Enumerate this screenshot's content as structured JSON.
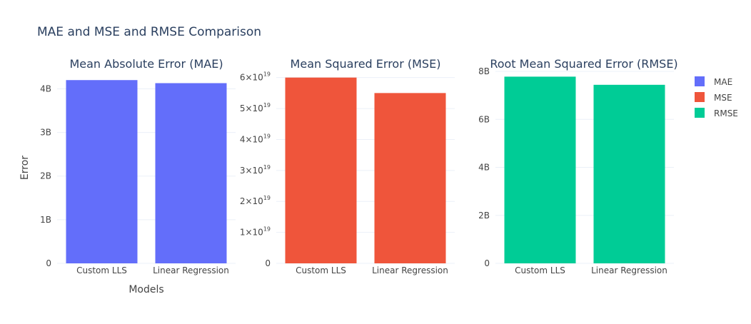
{
  "figure": {
    "title": "MAE and MSE and RMSE Comparison",
    "xlabel": "Models",
    "ylabel": "Error"
  },
  "colors": {
    "MAE": "#636efa",
    "MSE": "#ef553b",
    "RMSE": "#00cc96",
    "text": "#444444",
    "title": "#2a3f5f",
    "grid": "#ebf0f8"
  },
  "legend": {
    "placement": "top-right",
    "items": [
      "MAE",
      "MSE",
      "RMSE"
    ]
  },
  "chart_data": [
    {
      "type": "bar",
      "title": "Mean Absolute Error (MAE)",
      "categories": [
        "Custom LLS",
        "Linear Regression"
      ],
      "series": [
        {
          "name": "MAE",
          "values": [
            4200000000.0,
            4130000000.0
          ]
        }
      ],
      "ylim": [
        0,
        4400000000.0
      ],
      "yticks": [
        {
          "value": 0,
          "label": "0"
        },
        {
          "value": 1000000000.0,
          "label": "1B"
        },
        {
          "value": 2000000000.0,
          "label": "2B"
        },
        {
          "value": 3000000000.0,
          "label": "3B"
        },
        {
          "value": 4000000000.0,
          "label": "4B"
        }
      ],
      "grid": true
    },
    {
      "type": "bar",
      "title": "Mean Squared Error (MSE)",
      "categories": [
        "Custom LLS",
        "Linear Regression"
      ],
      "series": [
        {
          "name": "MSE",
          "values": [
            6e+19,
            5.5e+19
          ]
        }
      ],
      "ylim": [
        0,
        6.2e+19
      ],
      "yticks": [
        {
          "value": 0,
          "label": "0",
          "sup": ""
        },
        {
          "value": 1e+19,
          "label": "1×10",
          "sup": "19"
        },
        {
          "value": 2e+19,
          "label": "2×10",
          "sup": "19"
        },
        {
          "value": 3e+19,
          "label": "3×10",
          "sup": "19"
        },
        {
          "value": 4e+19,
          "label": "4×10",
          "sup": "19"
        },
        {
          "value": 5e+19,
          "label": "5×10",
          "sup": "19"
        },
        {
          "value": 6e+19,
          "label": "6×10",
          "sup": "19"
        }
      ],
      "grid": true
    },
    {
      "type": "bar",
      "title": "Root Mean Squared Error (RMSE)",
      "categories": [
        "Custom LLS",
        "Linear Regression"
      ],
      "series": [
        {
          "name": "RMSE",
          "values": [
            7780000000.0,
            7440000000.0
          ]
        }
      ],
      "ylim": [
        0,
        8000000000.0
      ],
      "yticks": [
        {
          "value": 0,
          "label": "0"
        },
        {
          "value": 2000000000.0,
          "label": "2B"
        },
        {
          "value": 4000000000.0,
          "label": "4B"
        },
        {
          "value": 6000000000.0,
          "label": "6B"
        },
        {
          "value": 8000000000.0,
          "label": "8B"
        }
      ],
      "grid": true
    }
  ]
}
